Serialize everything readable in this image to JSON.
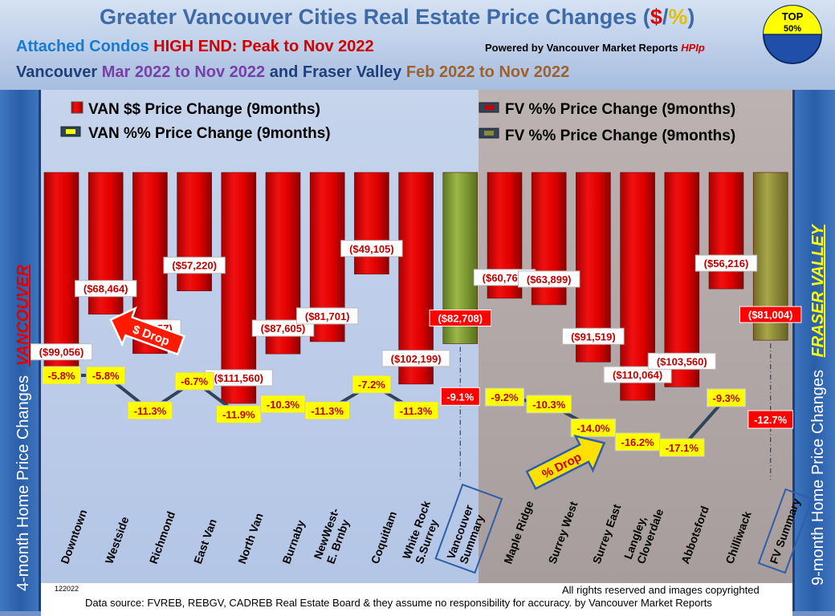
{
  "header": {
    "title_main": "Greater Vancouver Cities Real Estate Price Changes (",
    "title_dollar": "$",
    "title_slash": "/",
    "title_pct": "%",
    "title_close": ")",
    "badge_top": "TOP",
    "badge_pct": "50%",
    "sub1_part1": "Attached Condos",
    "sub1_part2": "HIGH END: Peak to Nov 2022",
    "powered_prefix": "Powered by Vancouver Market Reports",
    "powered_brand": "HPIp",
    "sub2_van": "Vancouver",
    "sub2_van_period": "Mar 2022 to Nov 2022",
    "sub2_and": "and",
    "sub2_fv": "Fraser Valley",
    "sub2_fv_period": "Feb 2022 to Nov 2022"
  },
  "side": {
    "left_text": "4-month Home Price Changes",
    "left_region": "VANCOUVER",
    "right_text": "9-month Home Price  Changes",
    "right_region": "FRASER VALLEY"
  },
  "legend": {
    "van_dollar": "VAN $$ Price Change (9months)",
    "van_pct": "VAN %% Price Change (9months)",
    "fv_pct_a": "FV %% Price Change (9months)",
    "fv_pct_b": "FV %% Price Change (9months)"
  },
  "annotations": {
    "dollar_drop": "$ Drop",
    "pct_drop": "% Drop"
  },
  "footer": {
    "code": "122022",
    "rights": "All rights reserved and  images copyrighted",
    "source": "Data source: FVREB, REBGV, CADREB Real Estate Board & they assume no responsibility for accuracy. by Vancouver Market Reports"
  },
  "colors": {
    "bar_red": "#e20000",
    "bar_summary": "#8aa43a",
    "label_yellow": "#ffff00",
    "label_red": "#ff0000",
    "van_panel": "#b8c9e6",
    "fv_panel": "#b3a8a8",
    "line": "#2f4458"
  },
  "chart_data": {
    "type": "bar",
    "categories": [
      "Downtown",
      "Westside",
      "Richmond",
      "East Van",
      "North Van",
      "Burnaby",
      "NewWest-\nE. Brnby",
      "Coquitlam",
      "White Rock\nS.Surrey",
      "Vancouver\nSummary",
      "Maple Ridge",
      "Surrey West",
      "Surrey East",
      "Langley,\nCloverdale",
      "Abbotsford",
      "Chilliwack",
      "FV Summary"
    ],
    "region": [
      "VAN",
      "VAN",
      "VAN",
      "VAN",
      "VAN",
      "VAN",
      "VAN",
      "VAN",
      "VAN",
      "VAN",
      "FV",
      "FV",
      "FV",
      "FV",
      "FV",
      "FV",
      "FV"
    ],
    "summary": [
      false,
      false,
      false,
      false,
      false,
      false,
      false,
      false,
      false,
      true,
      false,
      false,
      false,
      false,
      false,
      false,
      true
    ],
    "series": [
      {
        "name": "VAN $$ Price Change (9months)",
        "unit": "$",
        "values": [
          -99056,
          -68464,
          -87457,
          -57220,
          -111560,
          -87605,
          -81701,
          -49105,
          -102199,
          -82708,
          -60765,
          -63899,
          -91519,
          -110064,
          -103560,
          -56216,
          -81004
        ],
        "labels": [
          "($99,056)",
          "($68,464)",
          "($87,457)",
          "($57,220)",
          "($111,560)",
          "($87,605)",
          "($81,701)",
          "($49,105)",
          "($102,199)",
          "($82,708)",
          "($60,765)",
          "($63,899)",
          "($91,519)",
          "($110,064)",
          "($103,560)",
          "($56,216)",
          "($81,004)"
        ]
      },
      {
        "name": "VAN %% Price Change (9months)",
        "unit": "%",
        "values": [
          -5.8,
          -5.8,
          -11.3,
          -6.7,
          -11.9,
          -10.3,
          -11.3,
          -7.2,
          -11.3,
          -9.1,
          -9.2,
          -10.3,
          -14.0,
          -16.2,
          -17.1,
          -9.3,
          -12.7
        ],
        "labels": [
          "-5.8%",
          "-5.8%",
          "-11.3%",
          "-6.7%",
          "-11.9%",
          "-10.3%",
          "-11.3%",
          "-7.2%",
          "-11.3%",
          "-9.1%",
          "-9.2%",
          "-10.3%",
          "-14.0%",
          "-16.2%",
          "-17.1%",
          "-9.3%",
          "-12.7%"
        ]
      }
    ],
    "ylim_dollar": [
      -125000,
      0
    ],
    "grid": false,
    "legend_position": "top"
  }
}
